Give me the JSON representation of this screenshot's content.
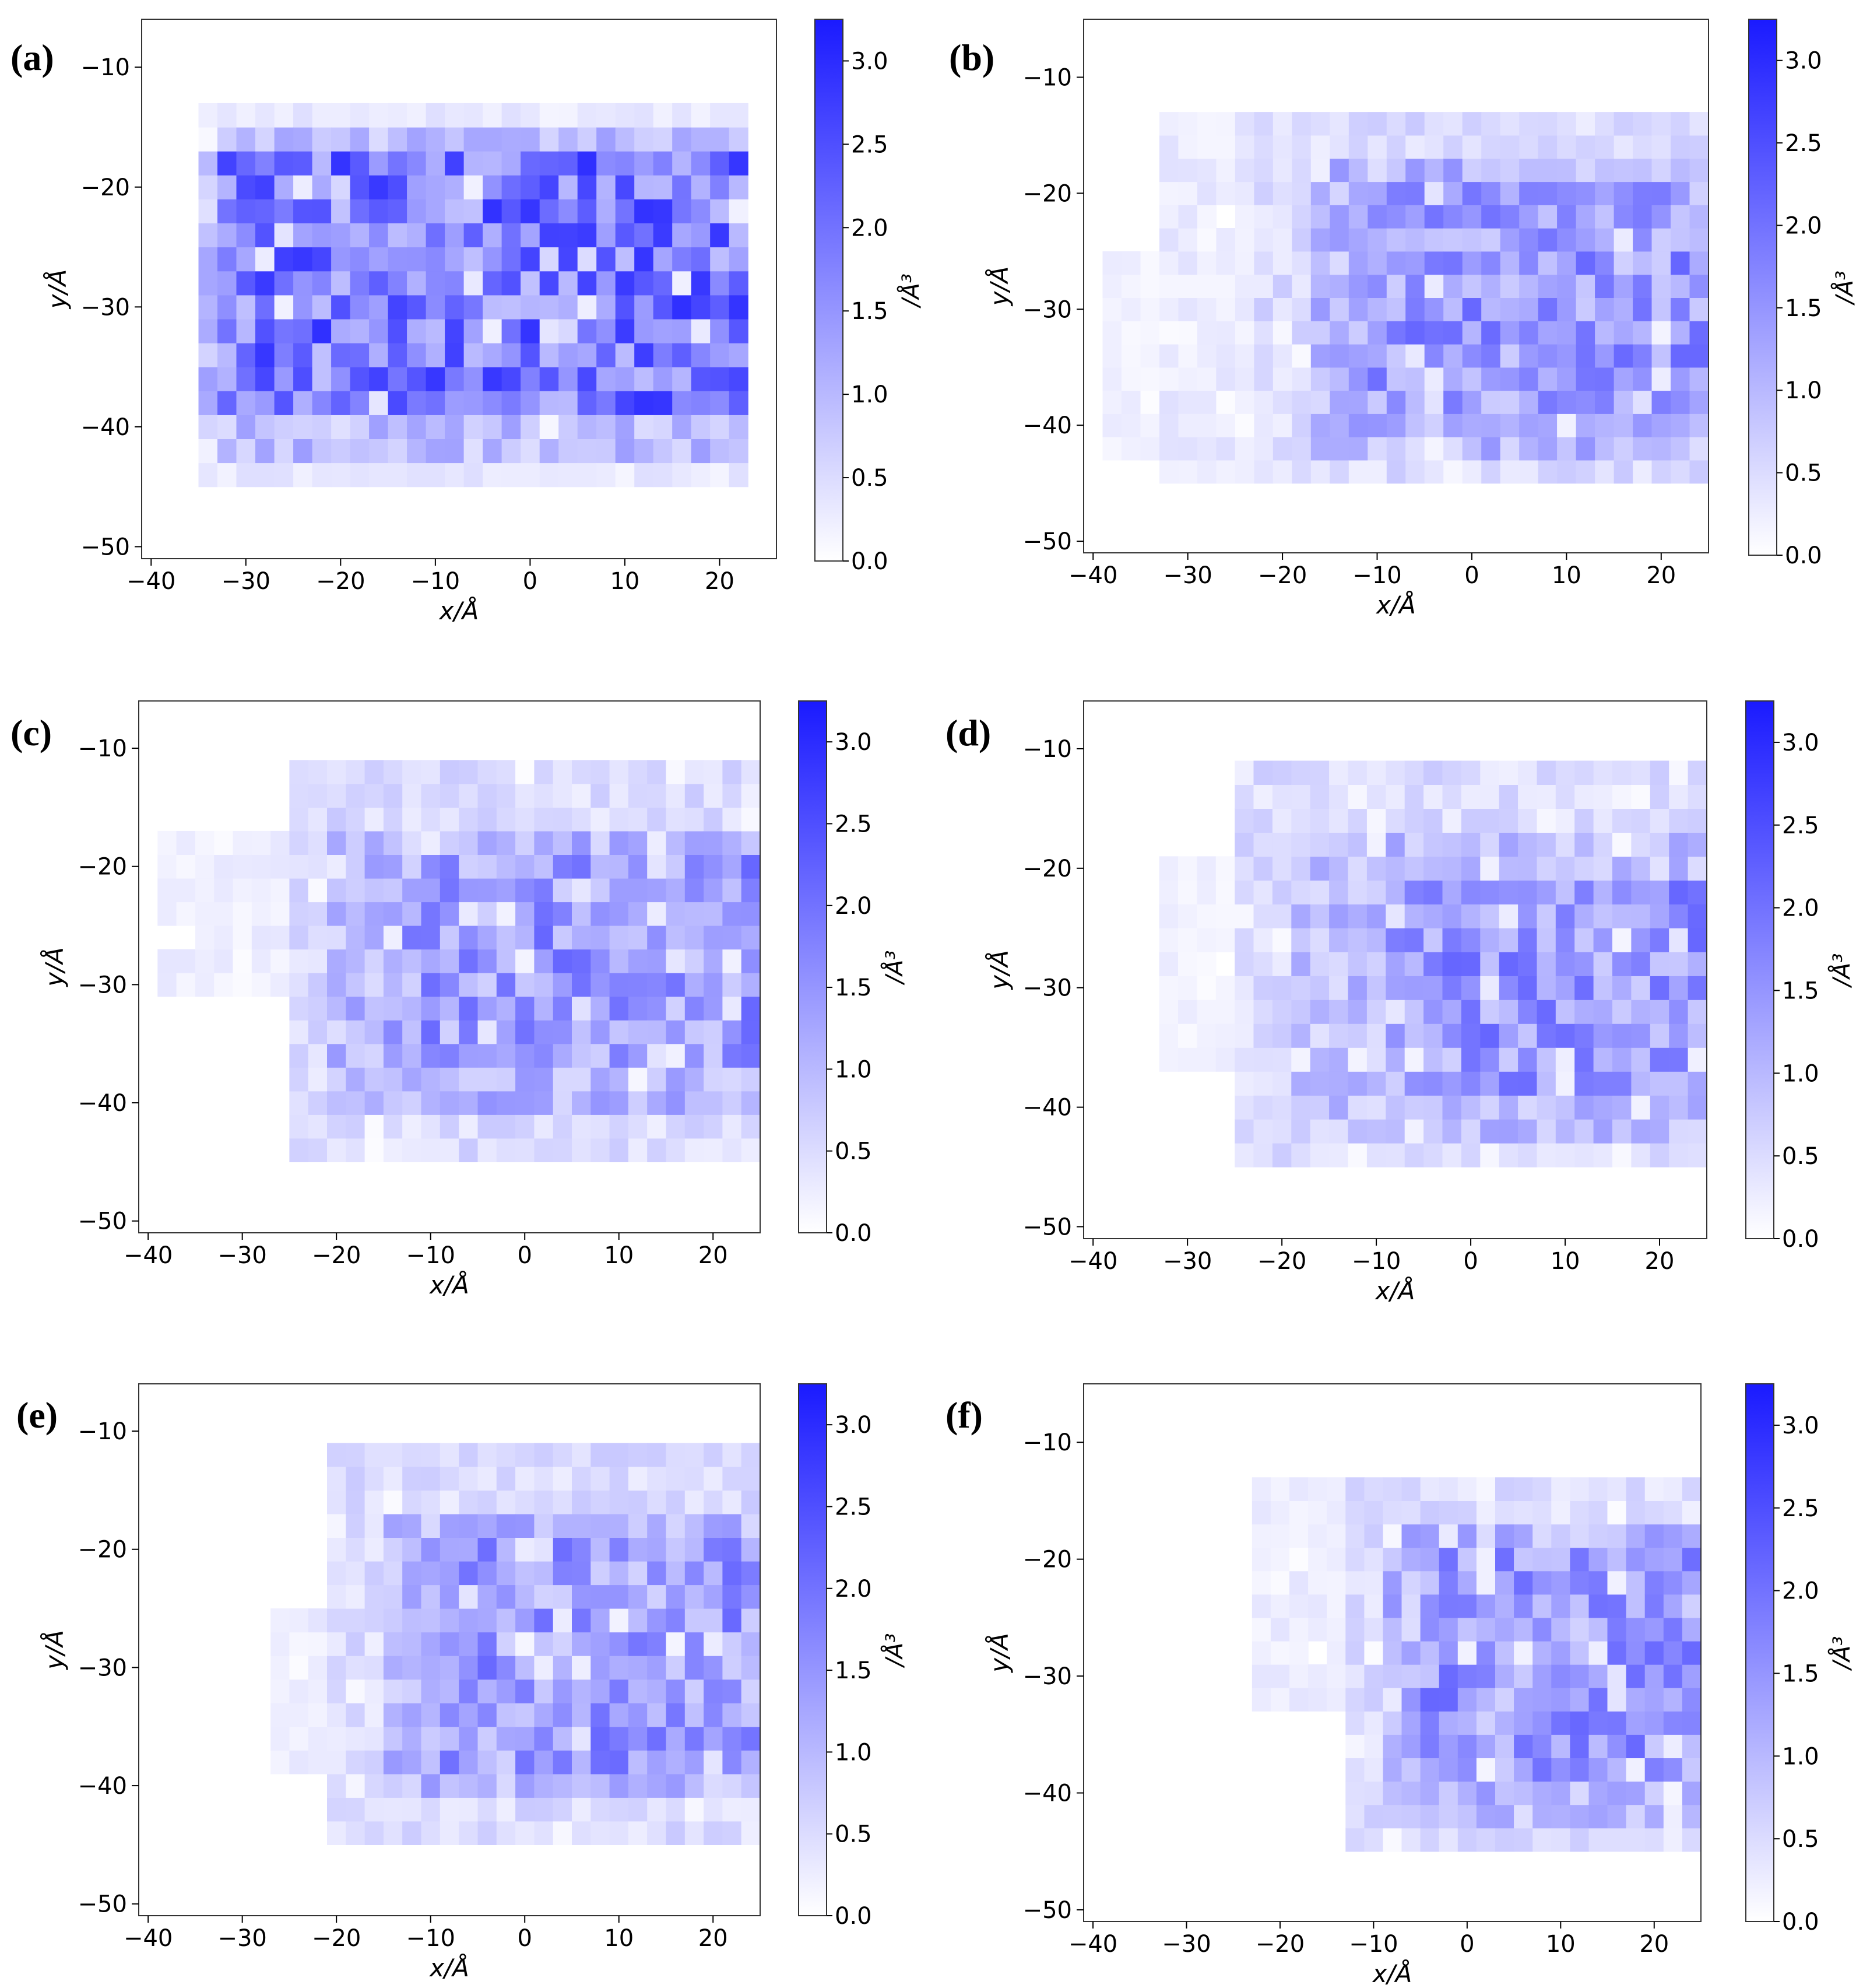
{
  "figure": {
    "colormap": {
      "low": "#ffffff",
      "high": "#1a1aff"
    },
    "vmin": 0,
    "vmax": 3.25,
    "bin_size_angstrom": 2
  },
  "chart_data": [
    {
      "type": "heatmap",
      "panel": "(a)",
      "xlabel": "x/Å",
      "ylabel": "y/Å",
      "colorbar_label": "/Å³",
      "xlim": [
        -41,
        26
      ],
      "ylim": [
        -51,
        -6
      ],
      "x_ticks": [
        "−40",
        "−30",
        "−20",
        "−10",
        "0",
        "10",
        "20"
      ],
      "x_tick_values": [
        -40,
        -30,
        -20,
        -10,
        0,
        10,
        20
      ],
      "y_ticks": [
        "−10",
        "−20",
        "−30",
        "−40",
        "−50"
      ],
      "y_tick_values": [
        -10,
        -20,
        -30,
        -40,
        -50
      ],
      "colorbar_ticks": [
        "0.0",
        "0.5",
        "1.0",
        "1.5",
        "2.0",
        "2.5",
        "3.0"
      ],
      "colorbar_tick_values": [
        0,
        0.5,
        1,
        1.5,
        2,
        2.5,
        3
      ],
      "colorbar_range": [
        0,
        3.25
      ],
      "regions": [
        {
          "x": [
            -35,
            23
          ],
          "y": [
            -45,
            -13
          ],
          "level": 0.3
        },
        {
          "x": [
            -34,
            23
          ],
          "y": [
            -42,
            -16
          ],
          "level": 0.9
        },
        {
          "x": [
            -33,
            22
          ],
          "y": [
            -39,
            -18
          ],
          "level": 1.9
        }
      ]
    },
    {
      "type": "heatmap",
      "panel": "(b)",
      "xlabel": "x/Å",
      "ylabel": "y/Å",
      "colorbar_label": "/Å³",
      "xlim": [
        -41,
        25
      ],
      "ylim": [
        -51,
        -5
      ],
      "x_ticks": [
        "−40",
        "−30",
        "−20",
        "−10",
        "0",
        "10",
        "20"
      ],
      "x_tick_values": [
        -40,
        -30,
        -20,
        -10,
        0,
        10,
        20
      ],
      "y_ticks": [
        "−10",
        "−20",
        "−30",
        "−40",
        "−50"
      ],
      "y_tick_values": [
        -10,
        -20,
        -30,
        -40,
        -50
      ],
      "colorbar_ticks": [
        "0.0",
        "0.5",
        "1.0",
        "1.5",
        "2.0",
        "2.5",
        "3.0"
      ],
      "colorbar_tick_values": [
        0,
        0.5,
        1,
        1.5,
        2,
        2.5,
        3
      ],
      "colorbar_range": [
        0,
        3.25
      ],
      "regions": [
        {
          "x": [
            -39,
            -33
          ],
          "y": [
            -42,
            -25
          ],
          "level": 0.2
        },
        {
          "x": [
            -32,
            -20
          ],
          "y": [
            -44,
            -14
          ],
          "level": 0.3
        },
        {
          "x": [
            -22,
            24
          ],
          "y": [
            -44,
            -13
          ],
          "level": 0.5
        },
        {
          "x": [
            -16,
            24
          ],
          "y": [
            -42,
            -18
          ],
          "level": 1.0
        },
        {
          "x": [
            -10,
            24
          ],
          "y": [
            -38,
            -20
          ],
          "level": 1.4
        }
      ]
    },
    {
      "type": "heatmap",
      "panel": "(c)",
      "xlabel": "x/Å",
      "ylabel": "y/Å",
      "colorbar_label": "/Å³",
      "xlim": [
        -41,
        25
      ],
      "ylim": [
        -51,
        -6
      ],
      "x_ticks": [
        "−40",
        "−30",
        "−20",
        "−10",
        "0",
        "10",
        "20"
      ],
      "x_tick_values": [
        -40,
        -30,
        -20,
        -10,
        0,
        10,
        20
      ],
      "y_ticks": [
        "−10",
        "−20",
        "−30",
        "−40",
        "−50"
      ],
      "y_tick_values": [
        -10,
        -20,
        -30,
        -40,
        -50
      ],
      "colorbar_ticks": [
        "0.0",
        "0.5",
        "1.0",
        "1.5",
        "2.0",
        "2.5",
        "3.0"
      ],
      "colorbar_tick_values": [
        0,
        0.5,
        1,
        1.5,
        2,
        2.5,
        3
      ],
      "colorbar_range": [
        0,
        3.25
      ],
      "regions": [
        {
          "x": [
            -38,
            -25
          ],
          "y": [
            -30,
            -17
          ],
          "level": 0.25
        },
        {
          "x": [
            -25,
            24
          ],
          "y": [
            -44,
            -12
          ],
          "level": 0.5
        },
        {
          "x": [
            -20,
            24
          ],
          "y": [
            -41,
            -17
          ],
          "level": 1.0
        },
        {
          "x": [
            -14,
            24
          ],
          "y": [
            -37,
            -20
          ],
          "level": 1.4
        }
      ]
    },
    {
      "type": "heatmap",
      "panel": "(d)",
      "xlabel": "x/Å",
      "ylabel": "y/Å",
      "colorbar_label": "/Å³",
      "xlim": [
        -41,
        25
      ],
      "ylim": [
        -51,
        -6
      ],
      "x_ticks": [
        "−40",
        "−30",
        "−20",
        "−10",
        "0",
        "10",
        "20"
      ],
      "x_tick_values": [
        -40,
        -30,
        -20,
        -10,
        0,
        10,
        20
      ],
      "y_ticks": [
        "−10",
        "−20",
        "−30",
        "−40",
        "−50"
      ],
      "y_tick_values": [
        -10,
        -20,
        -30,
        -40,
        -50
      ],
      "colorbar_ticks": [
        "0.0",
        "0.5",
        "1.0",
        "1.5",
        "2.0",
        "2.5",
        "3.0"
      ],
      "colorbar_tick_values": [
        0,
        0.5,
        1,
        1.5,
        2,
        2.5,
        3
      ],
      "colorbar_range": [
        0,
        3.25
      ],
      "regions": [
        {
          "x": [
            -33,
            -25
          ],
          "y": [
            -37,
            -20
          ],
          "level": 0.2
        },
        {
          "x": [
            -25,
            24
          ],
          "y": [
            -44,
            -12
          ],
          "level": 0.5
        },
        {
          "x": [
            -18,
            24
          ],
          "y": [
            -42,
            -17
          ],
          "level": 0.9
        },
        {
          "x": [
            -8,
            24
          ],
          "y": [
            -38,
            -21
          ],
          "level": 1.4
        }
      ]
    },
    {
      "type": "heatmap",
      "panel": "(e)",
      "xlabel": "x/Å",
      "ylabel": "y/Å",
      "colorbar_label": "/Å³",
      "xlim": [
        -41,
        25
      ],
      "ylim": [
        -51,
        -6
      ],
      "x_ticks": [
        "−40",
        "−30",
        "−20",
        "−10",
        "0",
        "10",
        "20"
      ],
      "x_tick_values": [
        -40,
        -30,
        -20,
        -10,
        0,
        10,
        20
      ],
      "y_ticks": [
        "−10",
        "−20",
        "−30",
        "−40",
        "−50"
      ],
      "y_tick_values": [
        -10,
        -20,
        -30,
        -40,
        -50
      ],
      "colorbar_ticks": [
        "0.0",
        "0.5",
        "1.0",
        "1.5",
        "2.0",
        "2.5",
        "3.0"
      ],
      "colorbar_tick_values": [
        0,
        0.5,
        1,
        1.5,
        2,
        2.5,
        3
      ],
      "colorbar_range": [
        0,
        3.25
      ],
      "regions": [
        {
          "x": [
            -26,
            -18
          ],
          "y": [
            -39,
            -26
          ],
          "level": 0.25
        },
        {
          "x": [
            -20,
            24
          ],
          "y": [
            -45,
            -11
          ],
          "level": 0.5
        },
        {
          "x": [
            -14,
            24
          ],
          "y": [
            -41,
            -17
          ],
          "level": 1.0
        },
        {
          "x": [
            -10,
            24
          ],
          "y": [
            -38,
            -19
          ],
          "level": 1.4
        }
      ]
    },
    {
      "type": "heatmap",
      "panel": "(f)",
      "xlabel": "x/Å",
      "ylabel": "y/Å",
      "colorbar_label": "/Å³",
      "xlim": [
        -41,
        25
      ],
      "ylim": [
        -51,
        -5
      ],
      "x_ticks": [
        "−40",
        "−30",
        "−20",
        "−10",
        "0",
        "10",
        "20"
      ],
      "x_tick_values": [
        -40,
        -30,
        -20,
        -10,
        0,
        10,
        20
      ],
      "y_ticks": [
        "−10",
        "−20",
        "−30",
        "−40",
        "−50"
      ],
      "y_tick_values": [
        -10,
        -20,
        -30,
        -40,
        -50
      ],
      "colorbar_ticks": [
        "0.0",
        "0.5",
        "1.0",
        "1.5",
        "2.0",
        "2.5",
        "3.0"
      ],
      "colorbar_tick_values": [
        0,
        0.5,
        1,
        1.5,
        2,
        2.5,
        3
      ],
      "colorbar_range": [
        0,
        3.25
      ],
      "regions": [
        {
          "x": [
            -22,
            -10
          ],
          "y": [
            -32,
            -13
          ],
          "level": 0.25
        },
        {
          "x": [
            -12,
            24
          ],
          "y": [
            -45,
            -14
          ],
          "level": 0.5
        },
        {
          "x": [
            -8,
            24
          ],
          "y": [
            -42,
            -18
          ],
          "level": 1.0
        },
        {
          "x": [
            -4,
            24
          ],
          "y": [
            -39,
            -20
          ],
          "level": 1.4
        }
      ]
    }
  ]
}
